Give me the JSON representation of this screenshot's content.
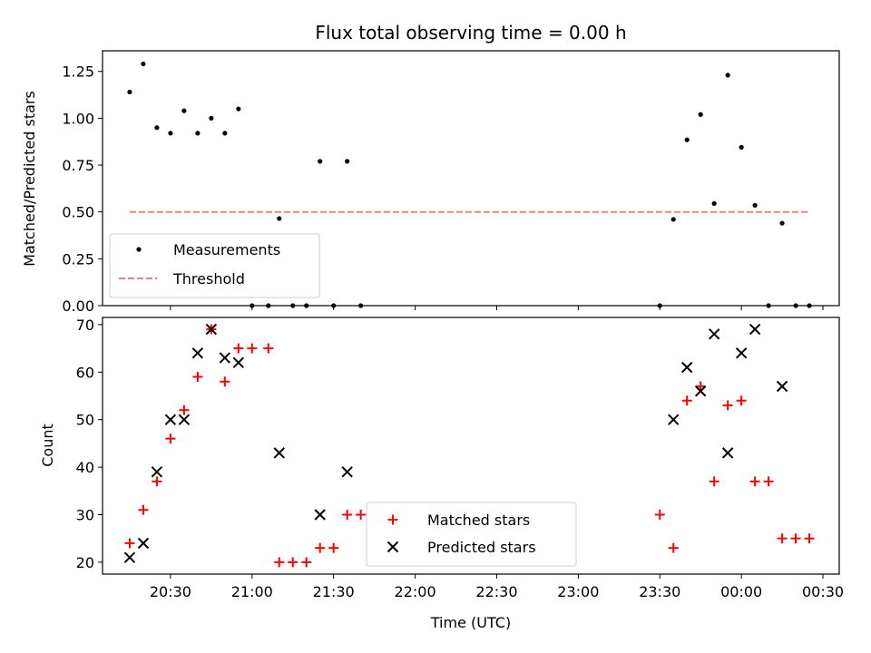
{
  "chart_data": [
    {
      "type": "scatter",
      "title": "Flux total observing time = 0.00 h",
      "xlabel": "",
      "ylabel": "Matched/Predicted stars",
      "xlim": [
        "20:05",
        "00:36"
      ],
      "ylim": [
        0,
        1.36
      ],
      "yticks": [
        "0.00",
        "0.25",
        "0.50",
        "0.75",
        "1.00",
        "1.25"
      ],
      "legend_position": "lower-left",
      "series": [
        {
          "name": "Measurements",
          "marker": "dot",
          "color": "#000000",
          "points": [
            [
              "20:15",
              1.14
            ],
            [
              "20:20",
              1.29
            ],
            [
              "20:25",
              0.95
            ],
            [
              "20:30",
              0.92
            ],
            [
              "20:35",
              1.04
            ],
            [
              "20:40",
              0.92
            ],
            [
              "20:45",
              1.0
            ],
            [
              "20:50",
              0.92
            ],
            [
              "20:55",
              1.05
            ],
            [
              "21:00",
              0.0
            ],
            [
              "21:06",
              0.0
            ],
            [
              "21:10",
              0.465
            ],
            [
              "21:15",
              0.0
            ],
            [
              "21:20",
              0.0
            ],
            [
              "21:25",
              0.77
            ],
            [
              "21:30",
              0.0
            ],
            [
              "21:35",
              0.77
            ],
            [
              "21:40",
              0.0
            ],
            [
              "23:30",
              0.0
            ],
            [
              "23:35",
              0.46
            ],
            [
              "23:40",
              0.885
            ],
            [
              "23:45",
              1.02
            ],
            [
              "23:50",
              0.545
            ],
            [
              "23:55",
              1.23
            ],
            [
              "00:00",
              0.845
            ],
            [
              "00:05",
              0.535
            ],
            [
              "00:10",
              0.0
            ],
            [
              "00:15",
              0.44
            ],
            [
              "00:20",
              0.0
            ],
            [
              "00:25",
              0.0
            ]
          ]
        },
        {
          "name": "Threshold",
          "marker": "dashed-line",
          "color": "#f08080",
          "points": [
            [
              "20:15",
              0.5
            ],
            [
              "00:25",
              0.5
            ]
          ]
        }
      ]
    },
    {
      "type": "scatter",
      "title": "",
      "xlabel": "Time (UTC)",
      "ylabel": "Count",
      "xlim": [
        "20:05",
        "00:36"
      ],
      "ylim": [
        17.5,
        71.5
      ],
      "xticks": [
        "20:30",
        "21:00",
        "21:30",
        "22:00",
        "22:30",
        "23:00",
        "23:30",
        "00:00",
        "00:30"
      ],
      "yticks": [
        "20",
        "30",
        "40",
        "50",
        "60",
        "70"
      ],
      "legend_position": "lower-center",
      "series": [
        {
          "name": "Matched stars",
          "marker": "plus",
          "color": "#ff0000",
          "points": [
            [
              "20:15",
              24
            ],
            [
              "20:20",
              31
            ],
            [
              "20:25",
              37
            ],
            [
              "20:30",
              46
            ],
            [
              "20:35",
              52
            ],
            [
              "20:40",
              59
            ],
            [
              "20:45",
              69
            ],
            [
              "20:50",
              58
            ],
            [
              "20:55",
              65
            ],
            [
              "21:00",
              65
            ],
            [
              "21:06",
              65
            ],
            [
              "21:10",
              20
            ],
            [
              "21:15",
              20
            ],
            [
              "21:20",
              20
            ],
            [
              "21:25",
              23
            ],
            [
              "21:30",
              23
            ],
            [
              "21:35",
              30
            ],
            [
              "21:40",
              30
            ],
            [
              "23:30",
              30
            ],
            [
              "23:35",
              23
            ],
            [
              "23:40",
              54
            ],
            [
              "23:45",
              57
            ],
            [
              "23:50",
              37
            ],
            [
              "23:55",
              53
            ],
            [
              "00:00",
              54
            ],
            [
              "00:05",
              37
            ],
            [
              "00:10",
              37
            ],
            [
              "00:15",
              25
            ],
            [
              "00:20",
              25
            ],
            [
              "00:25",
              25
            ]
          ]
        },
        {
          "name": "Predicted stars",
          "marker": "x",
          "color": "#000000",
          "points": [
            [
              "20:15",
              21
            ],
            [
              "20:20",
              24
            ],
            [
              "20:25",
              39
            ],
            [
              "20:30",
              50
            ],
            [
              "20:35",
              50
            ],
            [
              "20:40",
              64
            ],
            [
              "20:45",
              69
            ],
            [
              "20:50",
              63
            ],
            [
              "20:55",
              62
            ],
            [
              "21:10",
              43
            ],
            [
              "21:25",
              30
            ],
            [
              "21:35",
              39
            ],
            [
              "23:35",
              50
            ],
            [
              "23:40",
              61
            ],
            [
              "23:45",
              56
            ],
            [
              "23:50",
              68
            ],
            [
              "23:55",
              43
            ],
            [
              "00:00",
              64
            ],
            [
              "00:05",
              69
            ],
            [
              "00:15",
              57
            ]
          ]
        }
      ]
    }
  ]
}
